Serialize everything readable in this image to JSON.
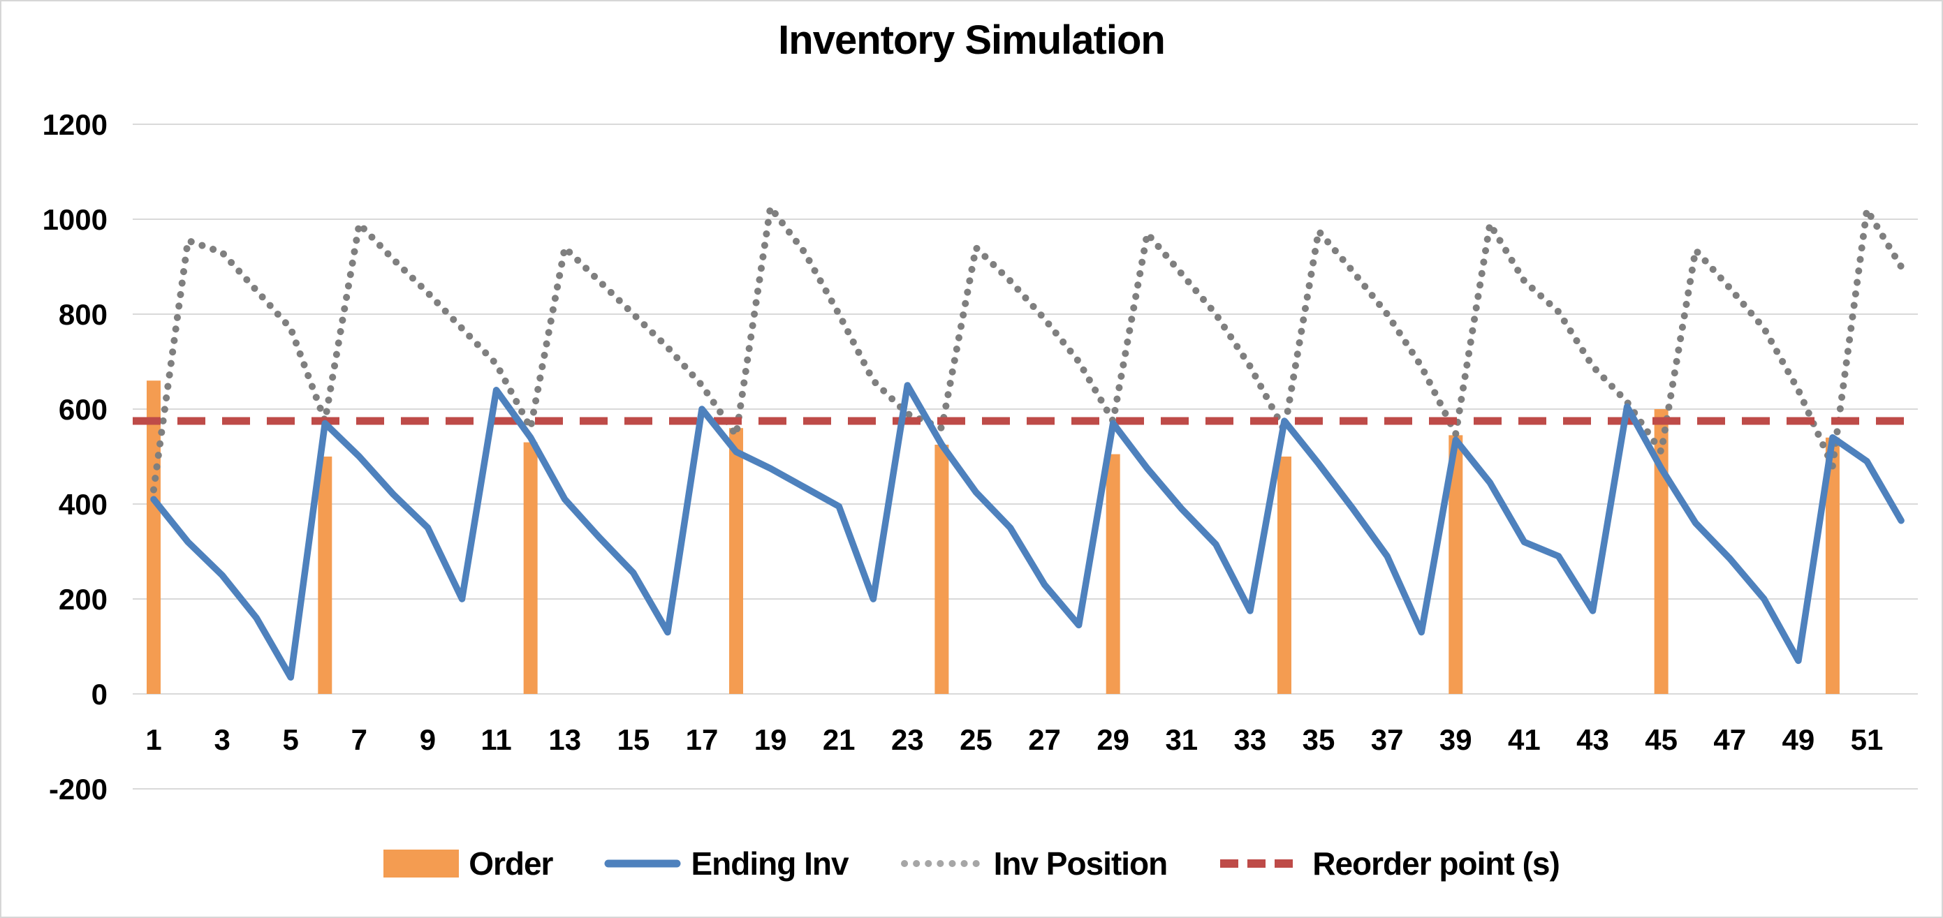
{
  "chart_data": {
    "type": "combo",
    "title": "Inventory Simulation",
    "xlabel": "",
    "ylabel": "",
    "x_range": [
      1,
      52
    ],
    "x_tick_labels": [
      "1",
      "3",
      "5",
      "7",
      "9",
      "11",
      "13",
      "15",
      "17",
      "19",
      "21",
      "23",
      "25",
      "27",
      "29",
      "31",
      "33",
      "35",
      "37",
      "39",
      "41",
      "43",
      "45",
      "47",
      "49",
      "51"
    ],
    "y_ticks": [
      -200,
      0,
      200,
      400,
      600,
      800,
      1000,
      1200
    ],
    "ylim": [
      -200,
      1200
    ],
    "grid": "horizontal",
    "legend_position": "bottom",
    "series": [
      {
        "name": "Order",
        "type": "bar",
        "color": "#F49C51",
        "points": [
          {
            "week": 1,
            "qty": 660
          },
          {
            "week": 6,
            "qty": 500
          },
          {
            "week": 12,
            "qty": 530
          },
          {
            "week": 18,
            "qty": 560
          },
          {
            "week": 24,
            "qty": 525
          },
          {
            "week": 29,
            "qty": 505
          },
          {
            "week": 34,
            "qty": 500
          },
          {
            "week": 39,
            "qty": 545
          },
          {
            "week": 45,
            "qty": 600
          },
          {
            "week": 50,
            "qty": 540
          }
        ]
      },
      {
        "name": "Ending Inv",
        "type": "line",
        "color": "#4E81BD",
        "values": [
          410,
          320,
          250,
          160,
          35,
          570,
          500,
          420,
          350,
          200,
          640,
          540,
          410,
          330,
          255,
          130,
          600,
          510,
          475,
          435,
          395,
          200,
          650,
          525,
          425,
          350,
          230,
          145,
          570,
          475,
          390,
          315,
          175,
          575,
          485,
          390,
          290,
          130,
          535,
          445,
          320,
          290,
          175,
          605,
          475,
          360,
          285,
          200,
          70,
          540,
          490,
          365
        ]
      },
      {
        "name": "Inv Position",
        "type": "dotted-line",
        "color": "#7F7F7F",
        "values": [
          430,
          955,
          930,
          850,
          770,
          575,
          990,
          915,
          845,
          770,
          695,
          560,
          940,
          870,
          800,
          730,
          650,
          545,
          1025,
          930,
          800,
          660,
          590,
          560,
          940,
          870,
          790,
          700,
          575,
          970,
          885,
          800,
          690,
          555,
          975,
          890,
          800,
          690,
          548,
          990,
          870,
          805,
          690,
          615,
          510,
          935,
          855,
          770,
          640,
          480,
          1020,
          900
        ]
      },
      {
        "name": "Reorder point (s)",
        "type": "dashed-hline",
        "color": "#BE4B48",
        "value": 575
      }
    ]
  },
  "legend": {
    "order": "Order",
    "ending_inv": "Ending Inv",
    "inv_position": "Inv Position",
    "reorder": "Reorder point (s)"
  },
  "colors": {
    "gridline": "#D9D9D9",
    "axis_text": "#000000",
    "background": "#FFFFFF",
    "frame_border": "#D6D6D6"
  }
}
